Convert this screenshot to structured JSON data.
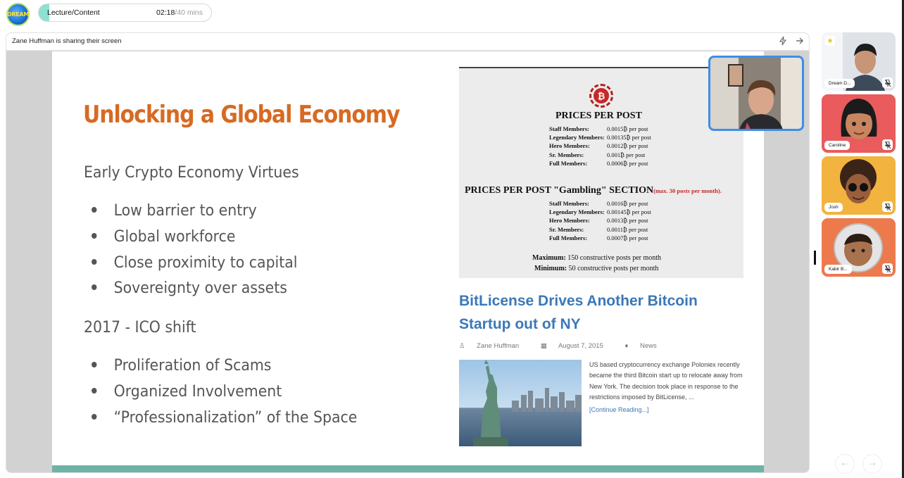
{
  "app": {
    "logo_text": "DREAM",
    "session_title": "Lecture/Content",
    "elapsed": "02:18",
    "total": "/40 mins"
  },
  "share": {
    "banner": "Zane Huffman is sharing their screen"
  },
  "slide": {
    "title": "Unlocking a Global Economy",
    "section1": "Early Crypto Economy Virtues",
    "bullets1": [
      "Low barrier to entry",
      "Global workforce",
      "Close proximity to capital",
      "Sovereignty over assets"
    ],
    "section2": "2017 - ICO shift",
    "bullets2": [
      "Proliferation of Scams",
      "Organized Involvement",
      "“Professionalization” of the Space"
    ]
  },
  "price_image": {
    "coin_symbol": "₿",
    "heading1": "PRICES PER POST",
    "table1": [
      {
        "k": "Staff Members:",
        "v": "0.0015₿ per post"
      },
      {
        "k": "Legendary Members:",
        "v": "0.00135₿ per post"
      },
      {
        "k": "Hero Members:",
        "v": "0.0012₿ per post"
      },
      {
        "k": "Sr. Members:",
        "v": "0.001₿ per post"
      },
      {
        "k": "Full Members:",
        "v": "0.0006₿ per post"
      }
    ],
    "heading2": "PRICES PER POST \"Gambling\" SECTION",
    "heading2_note": "(max. 30 posts per month).",
    "table2": [
      {
        "k": "Staff Members:",
        "v": "0.0016₿ per post"
      },
      {
        "k": "Legendary Members:",
        "v": "0.00145₿ per post"
      },
      {
        "k": "Hero Members:",
        "v": "0.0013₿ per post"
      },
      {
        "k": "Sr. Members:",
        "v": "0.0011₿ per post"
      },
      {
        "k": "Full Members:",
        "v": "0.0007₿ per post"
      }
    ],
    "max_label": "Maximum:",
    "max_text": "150 constructive posts per month",
    "min_label": "Minimum:",
    "min_text": "50 constructive posts per month"
  },
  "article": {
    "title": "BitLicense Drives Another Bitcoin Startup out of NY",
    "author": "Zane Huffman",
    "date": "August 7, 2015",
    "category": "News",
    "body": "US based cryptocurrency exchange Poloniex recently became the third Bitcoin start up to relocate away from New York. The decision took place in response to the restrictions imposed by BitLicense, ...",
    "link": "[Continue Reading...]"
  },
  "participants": [
    {
      "name": "Dream D...",
      "color": "#e8eef5"
    },
    {
      "name": "Caroline",
      "color": "#e85a5a"
    },
    {
      "name": "Josh",
      "color": "#f1b23e"
    },
    {
      "name": "Kabir B...",
      "color": "#e8774a"
    }
  ],
  "nav": {
    "prev": "←",
    "next": "→"
  }
}
